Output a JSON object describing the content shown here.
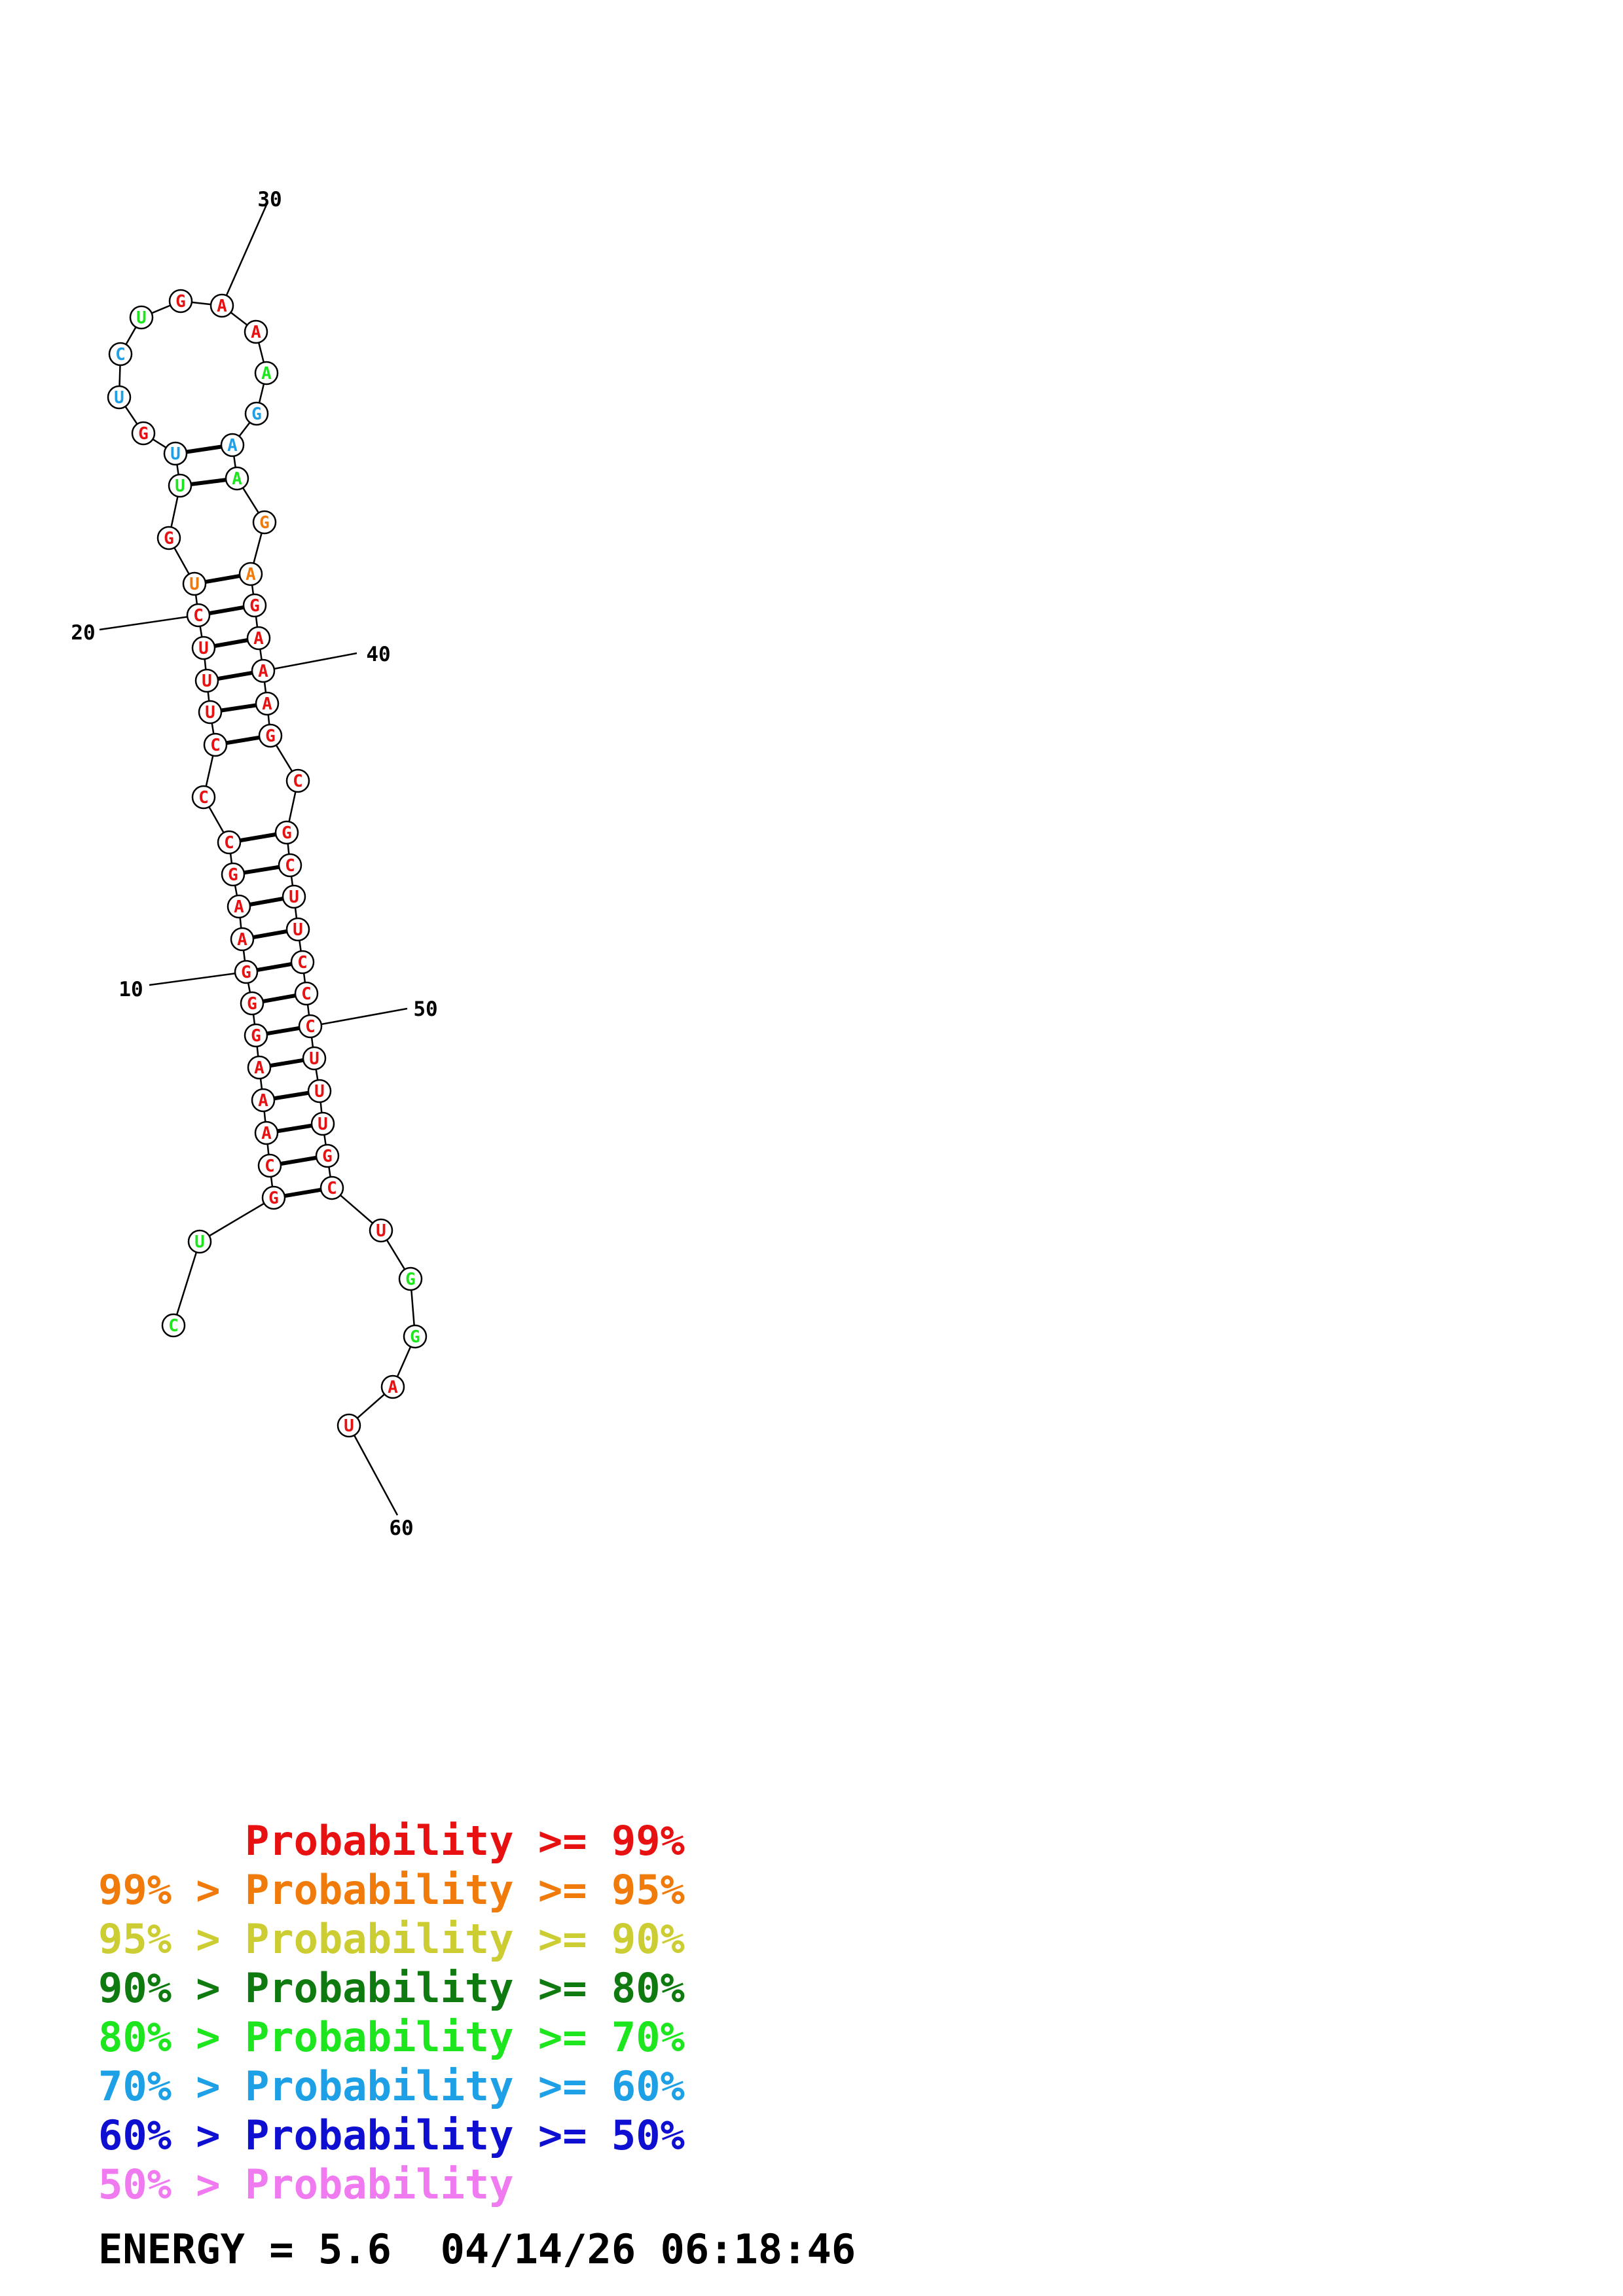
{
  "structure": {
    "nucleotides": [
      {
        "n": 1,
        "base": "C",
        "prob": "80-70"
      },
      {
        "n": 2,
        "base": "U",
        "prob": "80-70"
      },
      {
        "n": 3,
        "base": "G",
        "prob": ">=99"
      },
      {
        "n": 4,
        "base": "C",
        "prob": ">=99"
      },
      {
        "n": 5,
        "base": "A",
        "prob": ">=99"
      },
      {
        "n": 6,
        "base": "A",
        "prob": ">=99"
      },
      {
        "n": 7,
        "base": "A",
        "prob": ">=99"
      },
      {
        "n": 8,
        "base": "G",
        "prob": ">=99"
      },
      {
        "n": 9,
        "base": "G",
        "prob": ">=99"
      },
      {
        "n": 10,
        "base": "G",
        "prob": ">=99"
      },
      {
        "n": 11,
        "base": "A",
        "prob": ">=99"
      },
      {
        "n": 12,
        "base": "A",
        "prob": ">=99"
      },
      {
        "n": 13,
        "base": "G",
        "prob": ">=99"
      },
      {
        "n": 14,
        "base": "C",
        "prob": ">=99"
      },
      {
        "n": 15,
        "base": "C",
        "prob": ">=99"
      },
      {
        "n": 16,
        "base": "C",
        "prob": ">=99"
      },
      {
        "n": 17,
        "base": "U",
        "prob": ">=99"
      },
      {
        "n": 18,
        "base": "U",
        "prob": ">=99"
      },
      {
        "n": 19,
        "base": "U",
        "prob": ">=99"
      },
      {
        "n": 20,
        "base": "C",
        "prob": ">=99"
      },
      {
        "n": 21,
        "base": "U",
        "prob": "99-95"
      },
      {
        "n": 22,
        "base": "G",
        "prob": ">=99"
      },
      {
        "n": 23,
        "base": "U",
        "prob": "80-70"
      },
      {
        "n": 24,
        "base": "U",
        "prob": "70-60"
      },
      {
        "n": 25,
        "base": "G",
        "prob": ">=99"
      },
      {
        "n": 26,
        "base": "U",
        "prob": "70-60"
      },
      {
        "n": 27,
        "base": "C",
        "prob": "70-60"
      },
      {
        "n": 28,
        "base": "U",
        "prob": "80-70"
      },
      {
        "n": 29,
        "base": "G",
        "prob": ">=99"
      },
      {
        "n": 30,
        "base": "A",
        "prob": ">=99"
      },
      {
        "n": 31,
        "base": "A",
        "prob": ">=99"
      },
      {
        "n": 32,
        "base": "A",
        "prob": "80-70"
      },
      {
        "n": 33,
        "base": "G",
        "prob": "70-60"
      },
      {
        "n": 34,
        "base": "A",
        "prob": "70-60"
      },
      {
        "n": 35,
        "base": "A",
        "prob": "80-70"
      },
      {
        "n": 36,
        "base": "G",
        "prob": "99-95"
      },
      {
        "n": 37,
        "base": "A",
        "prob": "99-95"
      },
      {
        "n": 38,
        "base": "G",
        "prob": ">=99"
      },
      {
        "n": 39,
        "base": "A",
        "prob": ">=99"
      },
      {
        "n": 40,
        "base": "A",
        "prob": ">=99"
      },
      {
        "n": 41,
        "base": "A",
        "prob": ">=99"
      },
      {
        "n": 42,
        "base": "G",
        "prob": ">=99"
      },
      {
        "n": 43,
        "base": "C",
        "prob": ">=99"
      },
      {
        "n": 44,
        "base": "G",
        "prob": ">=99"
      },
      {
        "n": 45,
        "base": "C",
        "prob": ">=99"
      },
      {
        "n": 46,
        "base": "U",
        "prob": ">=99"
      },
      {
        "n": 47,
        "base": "U",
        "prob": ">=99"
      },
      {
        "n": 48,
        "base": "C",
        "prob": ">=99"
      },
      {
        "n": 49,
        "base": "C",
        "prob": ">=99"
      },
      {
        "n": 50,
        "base": "C",
        "prob": ">=99"
      },
      {
        "n": 51,
        "base": "U",
        "prob": ">=99"
      },
      {
        "n": 52,
        "base": "U",
        "prob": ">=99"
      },
      {
        "n": 53,
        "base": "U",
        "prob": ">=99"
      },
      {
        "n": 54,
        "base": "G",
        "prob": ">=99"
      },
      {
        "n": 55,
        "base": "C",
        "prob": ">=99"
      },
      {
        "n": 56,
        "base": "U",
        "prob": ">=99"
      },
      {
        "n": 57,
        "base": "G",
        "prob": "80-70"
      },
      {
        "n": 58,
        "base": "G",
        "prob": "80-70"
      },
      {
        "n": 59,
        "base": "A",
        "prob": ">=99"
      },
      {
        "n": 60,
        "base": "U",
        "prob": ">=99"
      }
    ],
    "pairs": [
      [
        3,
        55
      ],
      [
        4,
        54
      ],
      [
        5,
        53
      ],
      [
        6,
        52
      ],
      [
        7,
        51
      ],
      [
        8,
        50
      ],
      [
        9,
        49
      ],
      [
        10,
        48
      ],
      [
        11,
        47
      ],
      [
        12,
        46
      ],
      [
        13,
        45
      ],
      [
        14,
        44
      ],
      [
        16,
        42
      ],
      [
        17,
        41
      ],
      [
        18,
        40
      ],
      [
        19,
        39
      ],
      [
        20,
        38
      ],
      [
        21,
        37
      ],
      [
        23,
        35
      ],
      [
        24,
        34
      ]
    ],
    "position_labels": [
      {
        "n": 10,
        "text": "10"
      },
      {
        "n": 20,
        "text": "20"
      },
      {
        "n": 30,
        "text": "30"
      },
      {
        "n": 40,
        "text": "40"
      },
      {
        "n": 50,
        "text": "50"
      },
      {
        "n": 60,
        "text": "60"
      }
    ],
    "probability_colors": {
      ">=99": "#e81111",
      "99-95": "#f07a0a",
      "95-90": "#cccc33",
      "90-80": "#0f7a0f",
      "80-70": "#1ee61e",
      "70-60": "#1ea0e6",
      "60-50": "#0f0fd2",
      "<50": "#f07af0"
    }
  },
  "legend": [
    {
      "prefix": "",
      "label": "Probability",
      "suffix": ">= 99%",
      "color": "#e81111"
    },
    {
      "prefix": "99% >",
      "label": "Probability",
      "suffix": ">= 95%",
      "color": "#f07a0a"
    },
    {
      "prefix": "95% >",
      "label": "Probability",
      "suffix": ">= 90%",
      "color": "#cccc33"
    },
    {
      "prefix": "90% >",
      "label": "Probability",
      "suffix": ">= 80%",
      "color": "#0f7a0f"
    },
    {
      "prefix": "80% >",
      "label": "Probability",
      "suffix": ">= 70%",
      "color": "#1ee61e"
    },
    {
      "prefix": "70% >",
      "label": "Probability",
      "suffix": ">= 60%",
      "color": "#1ea0e6"
    },
    {
      "prefix": "60% >",
      "label": "Probability",
      "suffix": ">= 50%",
      "color": "#0f0fd2"
    },
    {
      "prefix": "50% >",
      "label": "Probability",
      "suffix": "",
      "color": "#f07af0"
    }
  ],
  "footer": {
    "energy": "ENERGY = 5.6",
    "timestamp": "04/14/26 06:18:46"
  }
}
